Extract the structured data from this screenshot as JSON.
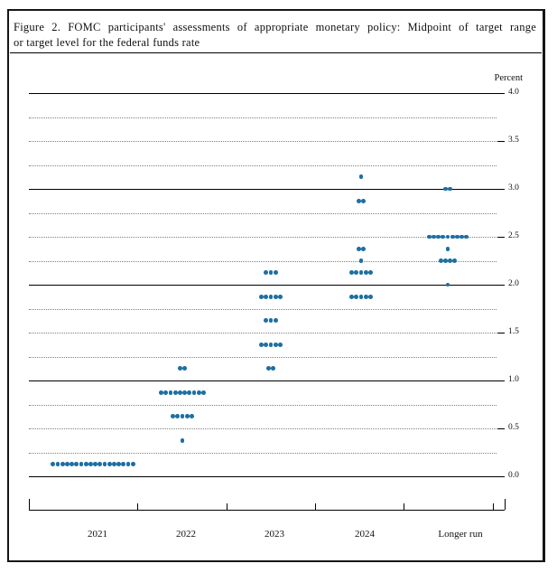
{
  "figure": {
    "title_line1": "Figure 2. FOMC participants' assessments of appropriate monetary policy: Midpoint of target range",
    "title_line2": "or target level for the federal funds rate"
  },
  "chart_data": {
    "type": "scatter",
    "title": "FOMC participants' assessments of appropriate monetary policy: Midpoint of target range or target level for the federal funds rate",
    "ylabel": "Percent",
    "xlabel": "",
    "ylim": [
      0.0,
      4.0
    ],
    "grid_interval": 0.25,
    "solid_line_interval": 1.0,
    "y_tick_labels": [
      "4.0",
      "3.5",
      "3.0",
      "2.5",
      "2.0",
      "1.5",
      "1.0",
      "0.5",
      "0.0"
    ],
    "categories": [
      "2021",
      "2022",
      "2023",
      "2024",
      "Longer run"
    ],
    "dot_color": "#1d6fa3",
    "legend_position": "none",
    "grid": "horizontal-dotted-quarter-solid-whole",
    "series": [
      {
        "category": "2021",
        "dots": [
          {
            "rate": 0.125,
            "count": 18
          }
        ]
      },
      {
        "category": "2022",
        "dots": [
          {
            "rate": 0.375,
            "count": 1
          },
          {
            "rate": 0.625,
            "count": 5
          },
          {
            "rate": 0.875,
            "count": 10
          },
          {
            "rate": 1.125,
            "count": 2
          }
        ]
      },
      {
        "category": "2023",
        "dots": [
          {
            "rate": 1.125,
            "count": 2
          },
          {
            "rate": 1.375,
            "count": 5
          },
          {
            "rate": 1.625,
            "count": 3
          },
          {
            "rate": 1.875,
            "count": 5
          },
          {
            "rate": 2.125,
            "count": 3
          }
        ]
      },
      {
        "category": "2024",
        "dots": [
          {
            "rate": 1.875,
            "count": 5
          },
          {
            "rate": 2.125,
            "count": 5
          },
          {
            "rate": 2.25,
            "count": 1
          },
          {
            "rate": 2.375,
            "count": 2
          },
          {
            "rate": 2.875,
            "count": 2
          },
          {
            "rate": 3.125,
            "count": 1
          }
        ]
      },
      {
        "category": "Longer run",
        "dots": [
          {
            "rate": 2.0,
            "count": 1
          },
          {
            "rate": 2.25,
            "count": 4
          },
          {
            "rate": 2.375,
            "count": 1
          },
          {
            "rate": 2.5,
            "count": 9
          },
          {
            "rate": 3.0,
            "count": 2
          }
        ]
      }
    ]
  }
}
